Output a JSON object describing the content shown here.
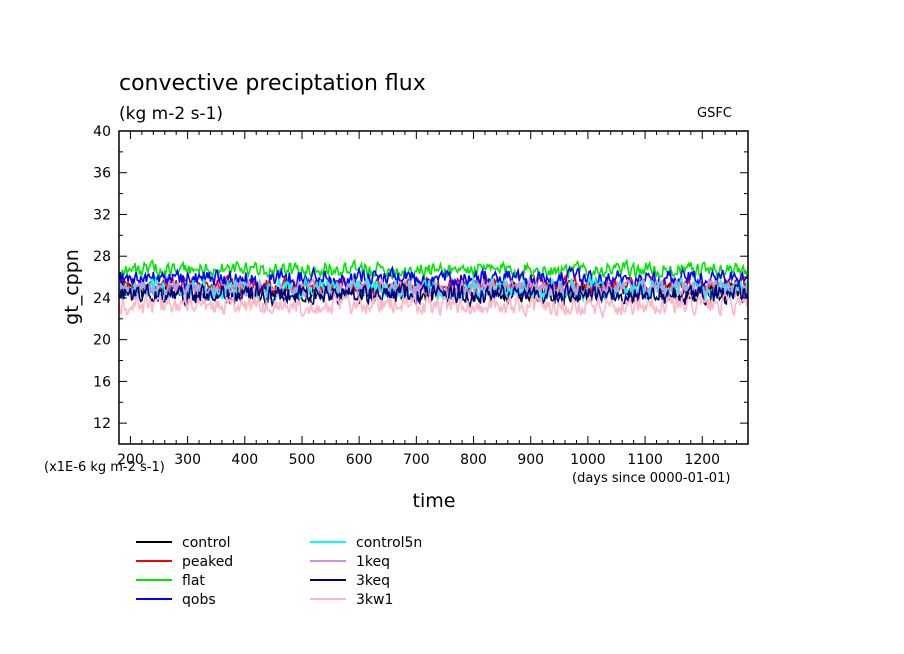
{
  "chart_data": {
    "type": "line",
    "title": "convective preciptation flux",
    "subtitle": "(kg m-2 s-1)",
    "source_label": "GSFC",
    "xlabel": "time",
    "x_units_note": "(days since 0000-01-01)",
    "ylabel": "gt_cppn",
    "y_scale_note": "(x1E-6 kg m-2 s-1)",
    "xlim": [
      180,
      1280
    ],
    "ylim": [
      10,
      40
    ],
    "x_ticks": [
      200,
      300,
      400,
      500,
      600,
      700,
      800,
      900,
      1000,
      1100,
      1200
    ],
    "y_ticks": [
      12,
      16,
      20,
      24,
      28,
      32,
      36,
      40
    ],
    "grid": false,
    "legend_position": "bottom-left",
    "series": [
      {
        "name": "control",
        "color": "#000000",
        "mean": 24.6,
        "noise": 0.9,
        "x_range": [
          180,
          1280
        ]
      },
      {
        "name": "peaked",
        "color": "#ff0000",
        "mean": 25.2,
        "noise": 0.7,
        "x_range": [
          180,
          1280
        ]
      },
      {
        "name": "flat",
        "color": "#00e600",
        "mean": 26.7,
        "noise": 0.7,
        "x_range": [
          180,
          1280
        ]
      },
      {
        "name": "qobs",
        "color": "#0000ff",
        "mean": 25.9,
        "noise": 0.8,
        "x_range": [
          180,
          1280
        ]
      },
      {
        "name": "control5n",
        "color": "#00ffff",
        "mean": 24.8,
        "noise": 1.0,
        "x_range": [
          180,
          1280
        ]
      },
      {
        "name": "1keq",
        "color": "#c896dc",
        "mean": 24.9,
        "noise": 0.8,
        "x_range": [
          180,
          1280
        ]
      },
      {
        "name": "3keq",
        "color": "#000080",
        "mean": 24.3,
        "noise": 0.9,
        "x_range": [
          180,
          1280
        ]
      },
      {
        "name": "3kw1",
        "color": "#ffb6c1",
        "mean": 23.3,
        "noise": 0.9,
        "x_range": [
          180,
          1280
        ]
      }
    ]
  }
}
